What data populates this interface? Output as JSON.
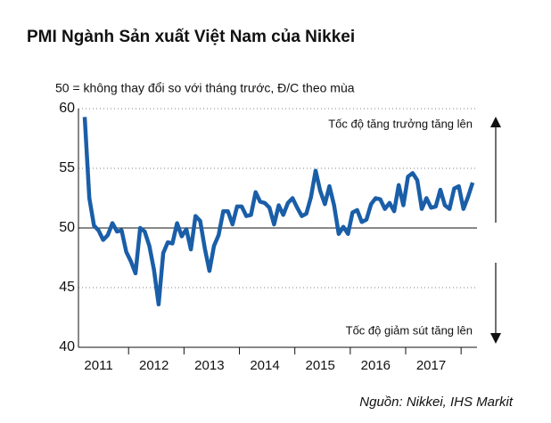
{
  "chart_data": {
    "type": "line",
    "title": "PMI Ngành Sản xuất Việt Nam của Nikkei",
    "subtitle": "50 = không thay đổi so với tháng trước, Đ/C theo mùa",
    "annotation_top": "Tốc độ tăng trưởng tăng lên",
    "annotation_bottom": "Tốc độ giảm sút tăng lên",
    "source": "Nguồn: Nikkei, IHS Markit",
    "categories": [
      null,
      null,
      null,
      "2011",
      null,
      null,
      null,
      null,
      null,
      null,
      null,
      null,
      null,
      null,
      null,
      "2012",
      null,
      null,
      null,
      null,
      null,
      null,
      null,
      null,
      null,
      null,
      null,
      "2013",
      null,
      null,
      null,
      null,
      null,
      null,
      null,
      null,
      null,
      null,
      null,
      "2014",
      null,
      null,
      null,
      null,
      null,
      null,
      null,
      null,
      null,
      null,
      null,
      "2015",
      null,
      null,
      null,
      null,
      null,
      null,
      null,
      null,
      null,
      null,
      null,
      "2016",
      null,
      null,
      null,
      null,
      null,
      null,
      null,
      null,
      null,
      null,
      null,
      "2017",
      null,
      null,
      null,
      null,
      null,
      null,
      null,
      null,
      null
    ],
    "series": [
      {
        "name": "PMI",
        "color": "#1a5ea8",
        "values": [
          59.3,
          52.5,
          50.2,
          49.8,
          49.0,
          49.4,
          50.4,
          49.7,
          49.8,
          48.0,
          47.2,
          46.2,
          50.0,
          49.7,
          48.5,
          46.5,
          43.6,
          47.9,
          48.8,
          48.7,
          50.4,
          49.3,
          49.9,
          48.2,
          51.0,
          50.6,
          48.3,
          46.4,
          48.5,
          49.4,
          51.4,
          51.4,
          50.3,
          51.8,
          51.8,
          51.0,
          51.1,
          53.0,
          52.2,
          52.1,
          51.7,
          50.3,
          51.9,
          51.1,
          52.1,
          52.5,
          51.7,
          51.0,
          51.2,
          52.6,
          54.8,
          53.1,
          52.0,
          53.5,
          51.9,
          49.5,
          50.1,
          49.5,
          51.3,
          51.5,
          50.5,
          50.7,
          52.0,
          52.5,
          52.4,
          51.6,
          52.1,
          51.4,
          53.6,
          51.9,
          54.3,
          54.6,
          54.0,
          51.6,
          52.5,
          51.7,
          51.8,
          53.2,
          51.9,
          51.6,
          53.3,
          53.5,
          51.6,
          52.6,
          53.8
        ]
      }
    ],
    "ylim": [
      40,
      60
    ],
    "yticks": [
      40,
      45,
      50,
      55,
      60
    ],
    "reference_line": 50
  }
}
